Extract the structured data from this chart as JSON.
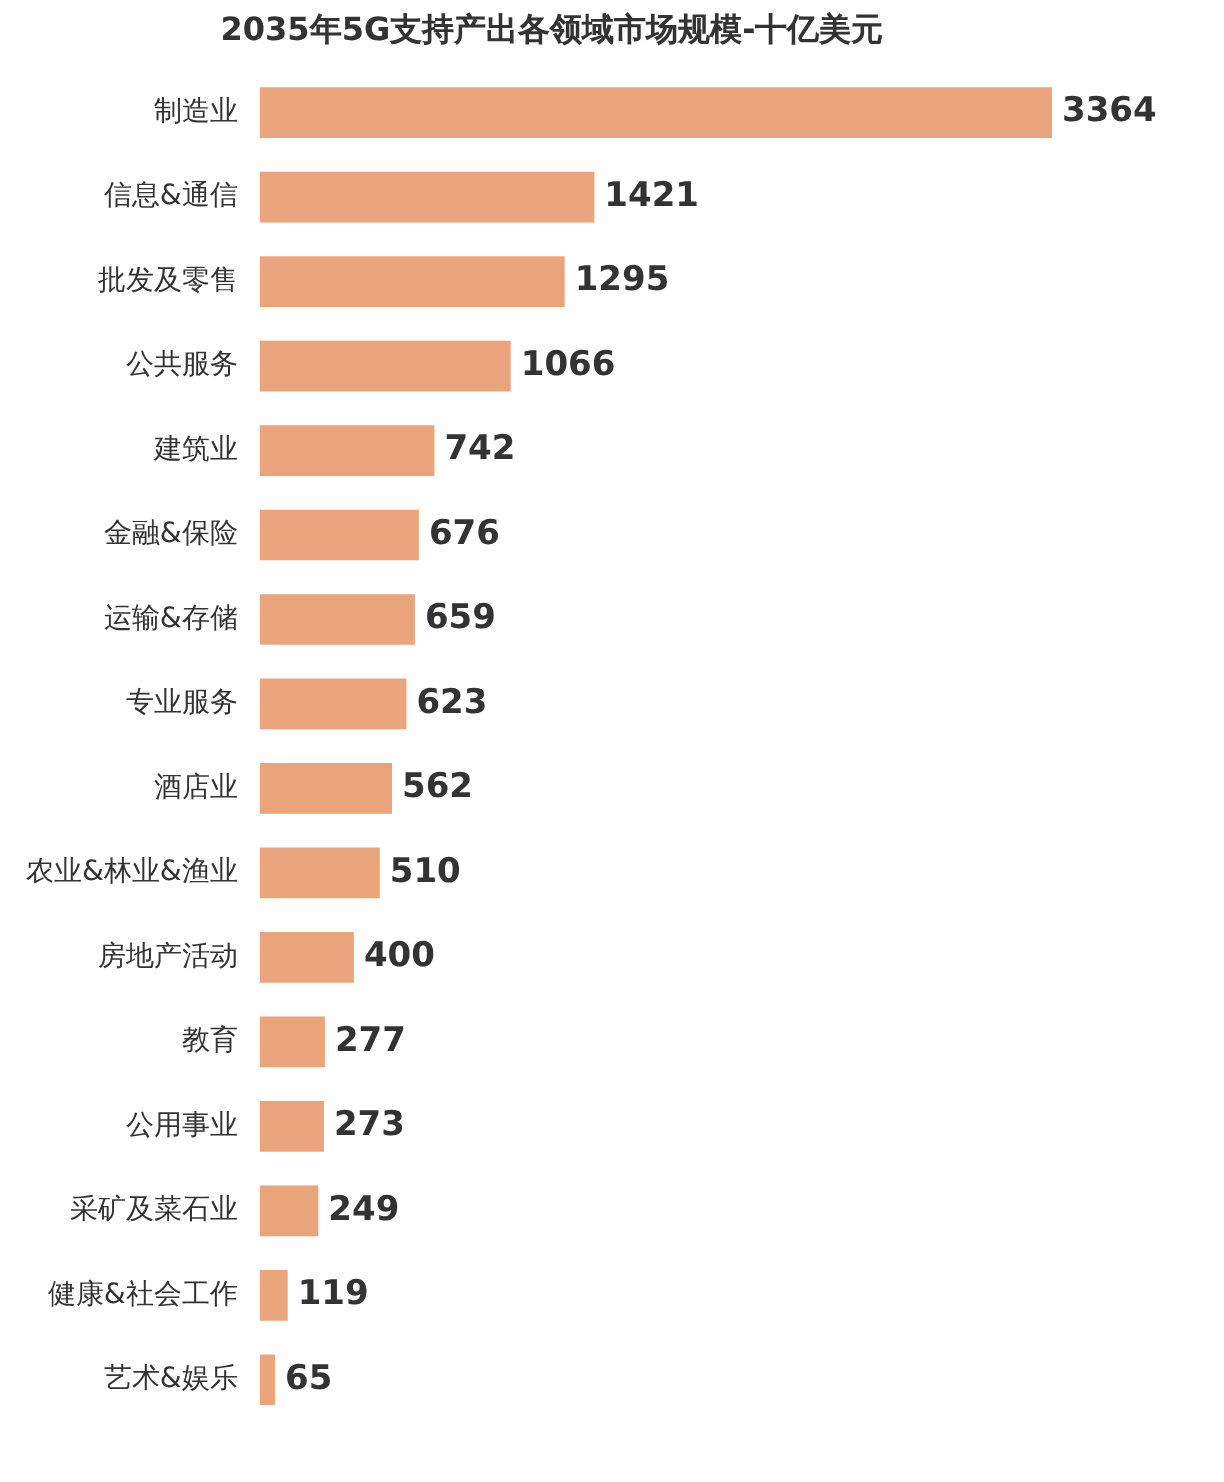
{
  "chart_data": {
    "type": "bar",
    "orientation": "horizontal",
    "title": "2035年5G支持产出各领域市场规模-十亿美元",
    "categories": [
      "制造业",
      "信息&通信",
      "批发及零售",
      "公共服务",
      "建筑业",
      "金融&保险",
      "运输&存储",
      "专业服务",
      "酒店业",
      "农业&林业&渔业",
      "房地产活动",
      "教育",
      "公用事业",
      "采矿及菜石业",
      "健康&社会工作",
      "艺术&娱乐"
    ],
    "values": [
      3364,
      1421,
      1295,
      1066,
      742,
      676,
      659,
      623,
      562,
      510,
      400,
      277,
      273,
      249,
      119,
      65
    ],
    "color": "#eaa47c",
    "data_labels": true,
    "legend": false,
    "tick_labels": "y"
  }
}
